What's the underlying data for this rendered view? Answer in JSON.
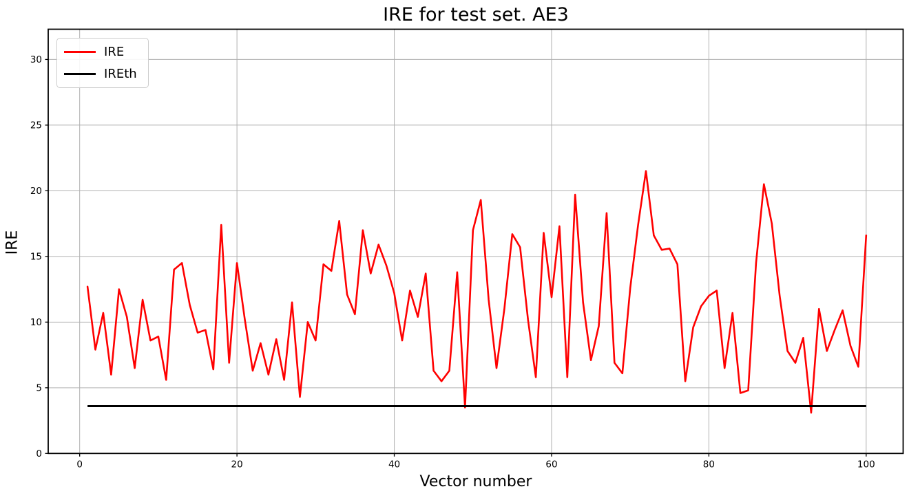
{
  "figure": {
    "title": "IRE for test set. AE3",
    "xlabel": "Vector number",
    "ylabel": "IRE"
  },
  "legend": {
    "position": "upper left",
    "items": [
      {
        "label": "IRE",
        "color": "#ff0000"
      },
      {
        "label": "IREth",
        "color": "#000000"
      }
    ]
  },
  "colors": {
    "grid": "#b0b0b0",
    "spine": "#000000",
    "tick_label": "#000000"
  },
  "chart_data": {
    "type": "line",
    "title": "IRE for test set. AE3",
    "xlabel": "Vector number",
    "ylabel": "IRE",
    "grid": true,
    "legend_position": "upper left",
    "xlim": [
      -4,
      104.7
    ],
    "ylim": [
      0,
      32.3
    ],
    "xticks": [
      0,
      20,
      40,
      60,
      80,
      100
    ],
    "yticks": [
      0,
      5,
      10,
      15,
      20,
      25,
      30
    ],
    "x_start": 1,
    "x_step": 1,
    "series": [
      {
        "name": "IRE",
        "color": "#ff0000",
        "linewidth": 2.6,
        "values": [
          12.7,
          7.9,
          10.7,
          6.0,
          12.5,
          10.4,
          6.5,
          11.7,
          8.6,
          8.9,
          5.6,
          14.0,
          14.5,
          11.3,
          9.2,
          9.4,
          6.4,
          17.4,
          6.9,
          14.5,
          10.2,
          6.3,
          8.4,
          6.0,
          8.7,
          5.6,
          11.5,
          4.3,
          10.0,
          8.6,
          14.4,
          13.9,
          17.7,
          12.1,
          10.6,
          17.0,
          13.7,
          15.9,
          14.3,
          12.2,
          8.6,
          12.4,
          10.4,
          13.7,
          6.3,
          5.5,
          6.3,
          13.8,
          3.5,
          17.0,
          19.3,
          11.7,
          6.5,
          11.0,
          16.7,
          15.7,
          10.2,
          5.8,
          16.8,
          11.9,
          17.3,
          5.8,
          19.7,
          11.5,
          7.1,
          9.7,
          18.3,
          6.9,
          6.1,
          12.6,
          17.4,
          21.5,
          16.6,
          15.5,
          15.6,
          14.4,
          5.5,
          9.6,
          11.2,
          12.0,
          12.4,
          6.5,
          10.7,
          4.6,
          4.8,
          14.5,
          20.5,
          17.5,
          12.0,
          7.8,
          6.9,
          8.8,
          3.1,
          11.0,
          7.8,
          9.4,
          10.9,
          8.2,
          6.6,
          16.6
        ]
      },
      {
        "name": "IREth",
        "color": "#000000",
        "linewidth": 3,
        "threshold_value": 3.6,
        "x_range": [
          1,
          100
        ]
      }
    ]
  }
}
